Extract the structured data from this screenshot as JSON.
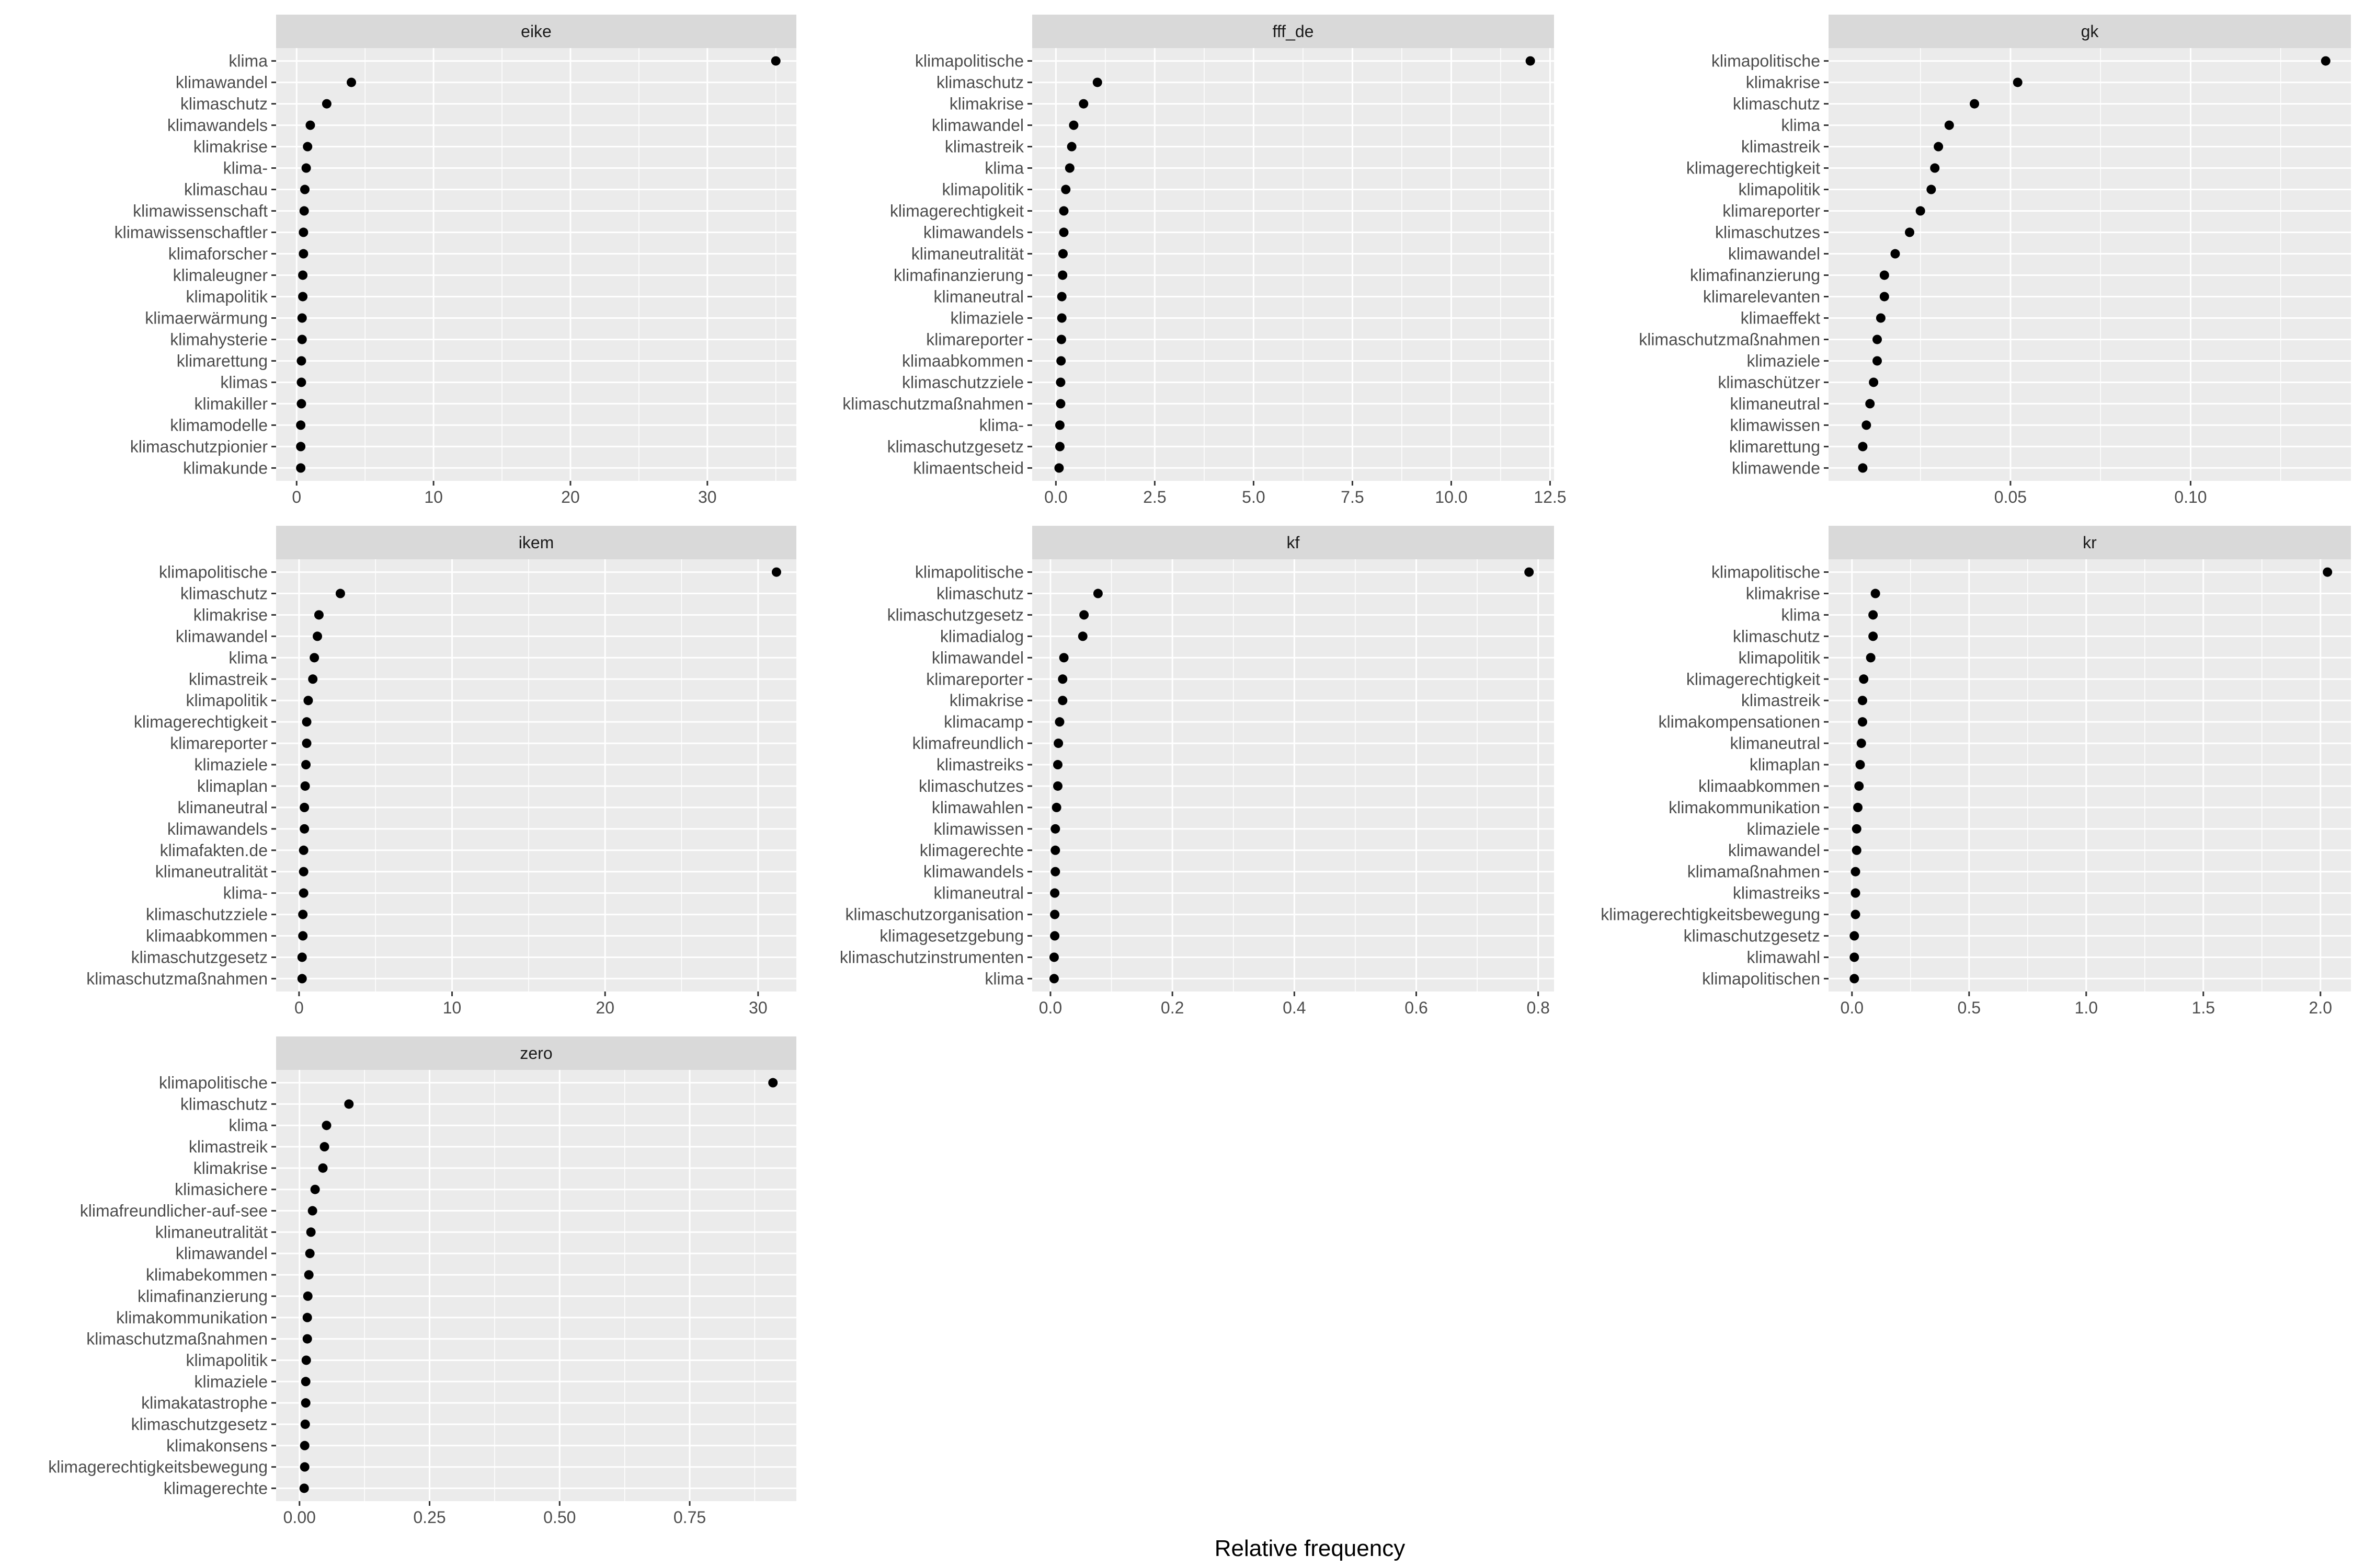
{
  "figure": {
    "xlabel": "Relative frequency",
    "colors": {
      "panel_bg": "#ebebeb",
      "strip_bg": "#d9d9d9",
      "grid": "#ffffff",
      "point": "#000000",
      "tick_text": "#4d4d4d"
    }
  },
  "chart_data": [
    {
      "type": "scatter",
      "title": "eike",
      "xlim": [
        -1.5,
        36.5
      ],
      "xticks": [
        0,
        10,
        20,
        30
      ],
      "xtick_labels": [
        "0",
        "10",
        "20",
        "30"
      ],
      "categories": [
        "klima",
        "klimawandel",
        "klimaschutz",
        "klimawandels",
        "klimakrise",
        "klima-",
        "klimaschau",
        "klimawissenschaft",
        "klimawissenschaftler",
        "klimaforscher",
        "klimaleugner",
        "klimapolitik",
        "klimaerwärmung",
        "klimahysterie",
        "klimarettung",
        "klimas",
        "klimakiller",
        "klimamodelle",
        "klimaschutzpionier",
        "klimakunde"
      ],
      "values": [
        35,
        4.0,
        2.2,
        1.0,
        0.8,
        0.7,
        0.6,
        0.55,
        0.5,
        0.5,
        0.45,
        0.45,
        0.4,
        0.4,
        0.35,
        0.35,
        0.35,
        0.3,
        0.3,
        0.3
      ]
    },
    {
      "type": "scatter",
      "title": "fff_de",
      "xlim": [
        -0.6,
        12.6
      ],
      "xticks": [
        0,
        2.5,
        5,
        7.5,
        10,
        12.5
      ],
      "xtick_labels": [
        "0.0",
        "2.5",
        "5.0",
        "7.5",
        "10.0",
        "12.5"
      ],
      "categories": [
        "klimapolitische",
        "klimaschutz",
        "klimakrise",
        "klimawandel",
        "klimastreik",
        "klima",
        "klimapolitik",
        "klimagerechtigkeit",
        "klimawandels",
        "klimaneutralität",
        "klimafinanzierung",
        "klimaneutral",
        "klimaziele",
        "klimareporter",
        "klimaabkommen",
        "klimaschutzziele",
        "klimaschutzmaßnahmen",
        "klima-",
        "klimaschutzgesetz",
        "klimaentscheid"
      ],
      "values": [
        12.0,
        1.05,
        0.7,
        0.45,
        0.4,
        0.35,
        0.25,
        0.2,
        0.2,
        0.18,
        0.17,
        0.15,
        0.15,
        0.14,
        0.13,
        0.12,
        0.12,
        0.1,
        0.1,
        0.08
      ]
    },
    {
      "type": "scatter",
      "title": "gk",
      "xlim": [
        -0.0005,
        0.1445
      ],
      "xticks": [
        0.05,
        0.1
      ],
      "xtick_labels": [
        "0.05",
        "0.10"
      ],
      "categories": [
        "klimapolitische",
        "klimakrise",
        "klimaschutz",
        "klima",
        "klimastreik",
        "klimagerechtigkeit",
        "klimapolitik",
        "klimareporter",
        "klimaschutzes",
        "klimawandel",
        "klimafinanzierung",
        "klimarelevanten",
        "klimaeffekt",
        "klimaschutzmaßnahmen",
        "klimaziele",
        "klimaschützer",
        "klimaneutral",
        "klimawissen",
        "klimarettung",
        "klimawende"
      ],
      "values": [
        0.1375,
        0.052,
        0.04,
        0.033,
        0.03,
        0.029,
        0.028,
        0.025,
        0.022,
        0.018,
        0.015,
        0.015,
        0.014,
        0.013,
        0.013,
        0.012,
        0.011,
        0.01,
        0.009,
        0.009
      ]
    },
    {
      "type": "scatter",
      "title": "ikem",
      "xlim": [
        -1.5,
        32.5
      ],
      "xticks": [
        0,
        10,
        20,
        30
      ],
      "xtick_labels": [
        "0",
        "10",
        "20",
        "30"
      ],
      "categories": [
        "klimapolitische",
        "klimaschutz",
        "klimakrise",
        "klimawandel",
        "klima",
        "klimastreik",
        "klimapolitik",
        "klimagerechtigkeit",
        "klimareporter",
        "klimaziele",
        "klimaplan",
        "klimaneutral",
        "klimawandels",
        "klimafakten.de",
        "klimaneutralität",
        "klima-",
        "klimaschutzziele",
        "klimaabkommen",
        "klimaschutzgesetz",
        "klimaschutzmaßnahmen"
      ],
      "values": [
        31.2,
        2.7,
        1.3,
        1.2,
        1.0,
        0.9,
        0.6,
        0.5,
        0.5,
        0.45,
        0.4,
        0.35,
        0.35,
        0.3,
        0.3,
        0.3,
        0.25,
        0.25,
        0.2,
        0.2
      ]
    },
    {
      "type": "scatter",
      "title": "kf",
      "xlim": [
        -0.03,
        0.826
      ],
      "xticks": [
        0,
        0.2,
        0.4,
        0.6,
        0.8
      ],
      "xtick_labels": [
        "0.0",
        "0.2",
        "0.4",
        "0.6",
        "0.8"
      ],
      "categories": [
        "klimapolitische",
        "klimaschutz",
        "klimaschutzgesetz",
        "klimadialog",
        "klimawandel",
        "klimareporter",
        "klimakrise",
        "klimacamp",
        "klimafreundlich",
        "klimastreiks",
        "klimaschutzes",
        "klimawahlen",
        "klimawissen",
        "klimagerechte",
        "klimawandels",
        "klimaneutral",
        "klimaschutzorganisation",
        "klimagesetzgebung",
        "klimaschutzinstrumenten",
        "klima"
      ],
      "values": [
        0.785,
        0.078,
        0.055,
        0.053,
        0.022,
        0.02,
        0.02,
        0.015,
        0.013,
        0.012,
        0.012,
        0.01,
        0.008,
        0.008,
        0.008,
        0.007,
        0.007,
        0.007,
        0.006,
        0.006
      ]
    },
    {
      "type": "scatter",
      "title": "kr",
      "xlim": [
        -0.1,
        2.13
      ],
      "xticks": [
        0,
        0.5,
        1.0,
        1.5,
        2.0
      ],
      "xtick_labels": [
        "0.0",
        "0.5",
        "1.0",
        "1.5",
        "2.0"
      ],
      "categories": [
        "klimapolitische",
        "klimakrise",
        "klima",
        "klimaschutz",
        "klimapolitik",
        "klimagerechtigkeit",
        "klimastreik",
        "klimakompensationen",
        "klimaneutral",
        "klimaplan",
        "klimaabkommen",
        "klimakommunikation",
        "klimaziele",
        "klimawandel",
        "klimamaßnahmen",
        "klimastreiks",
        "klimagerechtigkeitsbewegung",
        "klimaschutzgesetz",
        "klimawahl",
        "klimapolitischen"
      ],
      "values": [
        2.03,
        0.1,
        0.09,
        0.09,
        0.08,
        0.05,
        0.045,
        0.045,
        0.04,
        0.035,
        0.03,
        0.025,
        0.02,
        0.02,
        0.015,
        0.015,
        0.015,
        0.01,
        0.01,
        0.01
      ]
    },
    {
      "type": "scatter",
      "title": "zero",
      "xlim": [
        -0.045,
        0.955
      ],
      "xticks": [
        0,
        0.25,
        0.5,
        0.75
      ],
      "xtick_labels": [
        "0.00",
        "0.25",
        "0.50",
        "0.75"
      ],
      "categories": [
        "klimapolitische",
        "klimaschutz",
        "klima",
        "klimastreik",
        "klimakrise",
        "klimasichere",
        "klimafreundlicher-auf-see",
        "klimaneutralität",
        "klimawandel",
        "klimabekommen",
        "klimafinanzierung",
        "klimakommunikation",
        "klimaschutzmaßnahmen",
        "klimapolitik",
        "klimaziele",
        "klimakatastrophe",
        "klimaschutzgesetz",
        "klimakonsens",
        "klimagerechtigkeitsbewegung",
        "klimagerechte"
      ],
      "values": [
        0.91,
        0.095,
        0.052,
        0.048,
        0.045,
        0.03,
        0.025,
        0.022,
        0.02,
        0.018,
        0.016,
        0.015,
        0.015,
        0.013,
        0.012,
        0.012,
        0.011,
        0.01,
        0.01,
        0.009
      ]
    }
  ]
}
